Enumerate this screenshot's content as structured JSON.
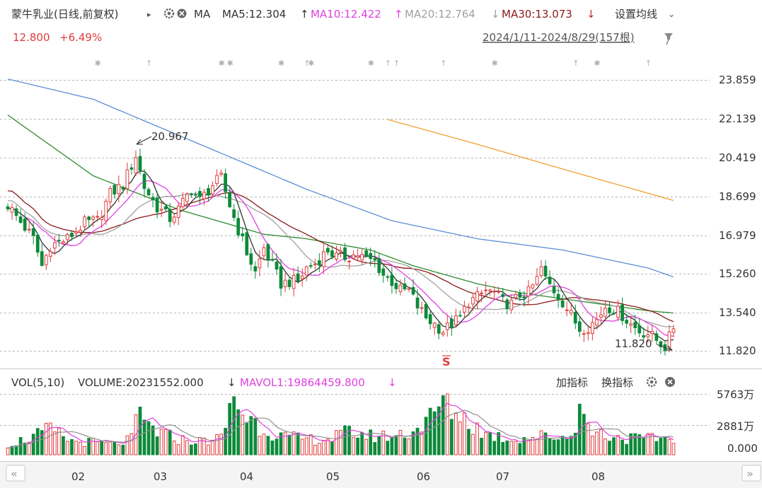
{
  "header": {
    "stock_title": "蒙牛乳业(日线,前复权)",
    "dropdown_arrow": "▸",
    "gear_icon": "gear-icon",
    "close_icon": "close-circle-icon",
    "indicator_name": "MA",
    "ma5_text": "MA5:12.304",
    "ma10_text": "MA10:12.422",
    "ma20_text": "MA20:12.764",
    "ma30_text": "MA30:13.073",
    "up_arrow": "↑",
    "down_arrow": "↓",
    "settings_label": "设置均线",
    "settings_caret": "⌄",
    "price_text": "12.800",
    "change_text": "+6.49%",
    "range_text": "2024/1/11-2024/8/29(157根)",
    "pin_icon": "pin-icon"
  },
  "volume_header": {
    "vol_label": "VOL(5,10)",
    "volume_text": "VOLUME:20231552.000",
    "mavol_text": "MAVOL1:19864459.800",
    "down_arrow": "↓",
    "add_indicator": "加指标",
    "switch_indicator": "换指标"
  },
  "footer": {
    "scroll_left": "«",
    "scroll_right": "»"
  },
  "colors": {
    "up": "#e03c3c",
    "down": "#0d8a3a",
    "ma5": "#333333",
    "ma10": "#e041e0",
    "ma20": "#a0a0a0",
    "ma30": "#8b1a1a",
    "ma60": "#2e8b2e",
    "ma120": "#5a8fd6",
    "ma250": "#f0a030",
    "grid": "#b8b8b8",
    "axis_text": "#333333"
  },
  "chart_data": {
    "type": "candlestick",
    "title": "蒙牛乳业(日线,前复权)",
    "price_ticks": [
      "23.859",
      "22.139",
      "20.419",
      "18.699",
      "16.979",
      "15.260",
      "13.540",
      "11.820"
    ],
    "ylim": [
      11.82,
      23.859
    ],
    "x_labels": [
      "02",
      "03",
      "04",
      "05",
      "06",
      "07",
      "08"
    ],
    "candle_count": 157,
    "annotations": [
      {
        "label": "20.967",
        "type": "period-high"
      },
      {
        "label": "11.820",
        "type": "period-low"
      },
      {
        "label": "S",
        "type": "signal"
      }
    ],
    "price_series": [
      {
        "name": "MA5",
        "value": 12.304,
        "color": "#333333"
      },
      {
        "name": "MA10",
        "value": 12.422,
        "color": "#e041e0"
      },
      {
        "name": "MA20",
        "value": 12.764,
        "color": "#a0a0a0"
      },
      {
        "name": "MA30",
        "value": 13.073,
        "color": "#8b1a1a"
      }
    ],
    "price_anchors": [
      [
        0,
        18.3
      ],
      [
        6,
        16.8
      ],
      [
        8,
        15.6
      ],
      [
        10,
        16.5
      ],
      [
        14,
        16.8
      ],
      [
        18,
        17.5
      ],
      [
        21,
        17.6
      ],
      [
        24,
        18.8
      ],
      [
        27,
        19.2
      ],
      [
        30,
        20.5
      ],
      [
        32,
        19.1
      ],
      [
        35,
        18.2
      ],
      [
        38,
        17.7
      ],
      [
        40,
        18.1
      ],
      [
        43,
        19.0
      ],
      [
        45,
        18.5
      ],
      [
        48,
        19.2
      ],
      [
        50,
        19.5
      ],
      [
        52,
        18.3
      ],
      [
        54,
        17.2
      ],
      [
        56,
        16.2
      ],
      [
        58,
        15.3
      ],
      [
        60,
        16.4
      ],
      [
        62,
        15.6
      ],
      [
        64,
        14.8
      ],
      [
        66,
        14.9
      ],
      [
        68,
        14.9
      ],
      [
        70,
        15.5
      ],
      [
        72,
        15.7
      ],
      [
        75,
        16.3
      ],
      [
        77,
        16.0
      ],
      [
        79,
        16.0
      ],
      [
        82,
        16.1
      ],
      [
        84,
        15.9
      ],
      [
        86,
        15.8
      ],
      [
        88,
        15.2
      ],
      [
        90,
        14.9
      ],
      [
        92,
        14.5
      ],
      [
        94,
        14.5
      ],
      [
        96,
        13.8
      ],
      [
        98,
        13.3
      ],
      [
        100,
        13.0
      ],
      [
        102,
        12.7
      ],
      [
        104,
        13.0
      ],
      [
        106,
        13.3
      ],
      [
        108,
        14.0
      ],
      [
        110,
        14.2
      ],
      [
        112,
        14.5
      ],
      [
        114,
        14.4
      ],
      [
        116,
        14.0
      ],
      [
        118,
        13.9
      ],
      [
        120,
        14.3
      ],
      [
        122,
        14.4
      ],
      [
        124,
        15.0
      ],
      [
        125,
        15.5
      ],
      [
        126,
        15.0
      ],
      [
        128,
        14.5
      ],
      [
        130,
        14.0
      ],
      [
        132,
        13.4
      ],
      [
        134,
        12.8
      ],
      [
        136,
        12.9
      ],
      [
        138,
        13.2
      ],
      [
        140,
        13.8
      ],
      [
        142,
        13.7
      ],
      [
        144,
        13.4
      ],
      [
        146,
        13.0
      ],
      [
        148,
        12.7
      ],
      [
        150,
        12.6
      ],
      [
        152,
        12.3
      ],
      [
        154,
        12.0
      ],
      [
        156,
        12.8
      ]
    ],
    "ma60_anchors": [
      [
        0,
        22.3
      ],
      [
        20,
        19.6
      ],
      [
        40,
        18.1
      ],
      [
        60,
        17.0
      ],
      [
        70,
        16.8
      ],
      [
        85,
        16.3
      ],
      [
        95,
        15.6
      ],
      [
        110,
        14.8
      ],
      [
        120,
        14.4
      ],
      [
        135,
        14.0
      ],
      [
        150,
        13.6
      ],
      [
        156,
        13.5
      ]
    ],
    "ma120_anchors": [
      [
        0,
        23.9
      ],
      [
        20,
        23.0
      ],
      [
        35,
        21.8
      ],
      [
        50,
        20.6
      ],
      [
        70,
        19.0
      ],
      [
        90,
        17.6
      ],
      [
        110,
        16.8
      ],
      [
        130,
        16.3
      ],
      [
        150,
        15.5
      ],
      [
        156,
        15.1
      ]
    ],
    "ma250_anchors": [
      [
        89,
        22.1
      ],
      [
        110,
        21.0
      ],
      [
        130,
        19.9
      ],
      [
        156,
        18.5
      ]
    ],
    "volume_ticks": [
      "5763万",
      "2881万",
      "0.000"
    ],
    "volume_max": 5763,
    "volume_unit": "万",
    "volume_series": [
      {
        "name": "VOLUME",
        "value": 20231552.0
      },
      {
        "name": "MAVOL1",
        "value": 19864459.8
      }
    ],
    "volume_anchors": [
      [
        0,
        1000
      ],
      [
        5,
        1600
      ],
      [
        10,
        2400
      ],
      [
        15,
        1300
      ],
      [
        20,
        1200
      ],
      [
        25,
        1000
      ],
      [
        29,
        1500
      ],
      [
        30,
        3800
      ],
      [
        35,
        2200
      ],
      [
        40,
        1500
      ],
      [
        45,
        1300
      ],
      [
        50,
        1600
      ],
      [
        53,
        5500
      ],
      [
        55,
        4000
      ],
      [
        60,
        2500
      ],
      [
        65,
        1700
      ],
      [
        70,
        1500
      ],
      [
        75,
        1500
      ],
      [
        80,
        2200
      ],
      [
        85,
        1800
      ],
      [
        90,
        1800
      ],
      [
        95,
        2300
      ],
      [
        100,
        3800
      ],
      [
        102,
        5600
      ],
      [
        104,
        4500
      ],
      [
        108,
        3200
      ],
      [
        112,
        2000
      ],
      [
        118,
        1500
      ],
      [
        125,
        1800
      ],
      [
        132,
        1700
      ],
      [
        134,
        4800
      ],
      [
        136,
        2500
      ],
      [
        140,
        1900
      ],
      [
        145,
        1600
      ],
      [
        150,
        1500
      ],
      [
        156,
        1700
      ]
    ]
  }
}
